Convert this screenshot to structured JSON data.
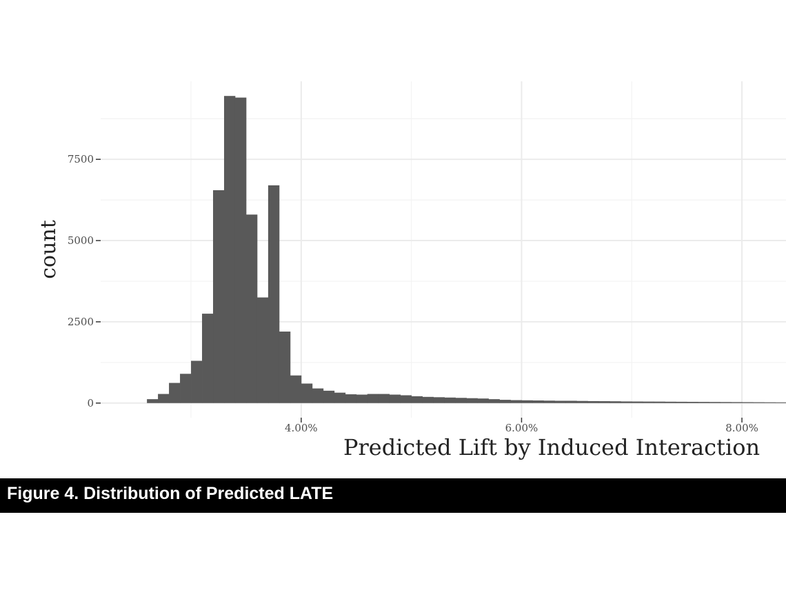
{
  "figure": {
    "caption": "Figure 4. Distribution of Predicted LATE"
  },
  "chart_data": {
    "type": "bar",
    "title": "",
    "xlabel": "Predicted Lift by Induced Interaction",
    "ylabel": "count",
    "xlim": [
      2.18,
      8.4
    ],
    "ylim": [
      -450,
      9900
    ],
    "x_ticks": [
      {
        "value": 4.0,
        "label": "4.00%"
      },
      {
        "value": 6.0,
        "label": "6.00%"
      },
      {
        "value": 8.0,
        "label": "8.00%"
      }
    ],
    "y_ticks": [
      {
        "value": 0,
        "label": "0"
      },
      {
        "value": 2500,
        "label": "2500"
      },
      {
        "value": 5000,
        "label": "5000"
      },
      {
        "value": 7500,
        "label": "7500"
      }
    ],
    "grid": true,
    "bar_color": "#595959",
    "grid_major_color": "#ebebeb",
    "grid_minor_color": "#f3f3f3",
    "bin_width": 0.1,
    "bin_start": 2.6,
    "values": [
      120,
      280,
      620,
      900,
      1300,
      2750,
      6550,
      9450,
      9400,
      5800,
      3250,
      6700,
      2200,
      850,
      600,
      450,
      380,
      320,
      270,
      260,
      280,
      280,
      260,
      240,
      210,
      190,
      180,
      170,
      160,
      150,
      140,
      120,
      100,
      90,
      85,
      80,
      75,
      70,
      70,
      65,
      60,
      58,
      55,
      50,
      48,
      46,
      45,
      42,
      40,
      38,
      36,
      34,
      32,
      30,
      28,
      26,
      24,
      22
    ]
  }
}
